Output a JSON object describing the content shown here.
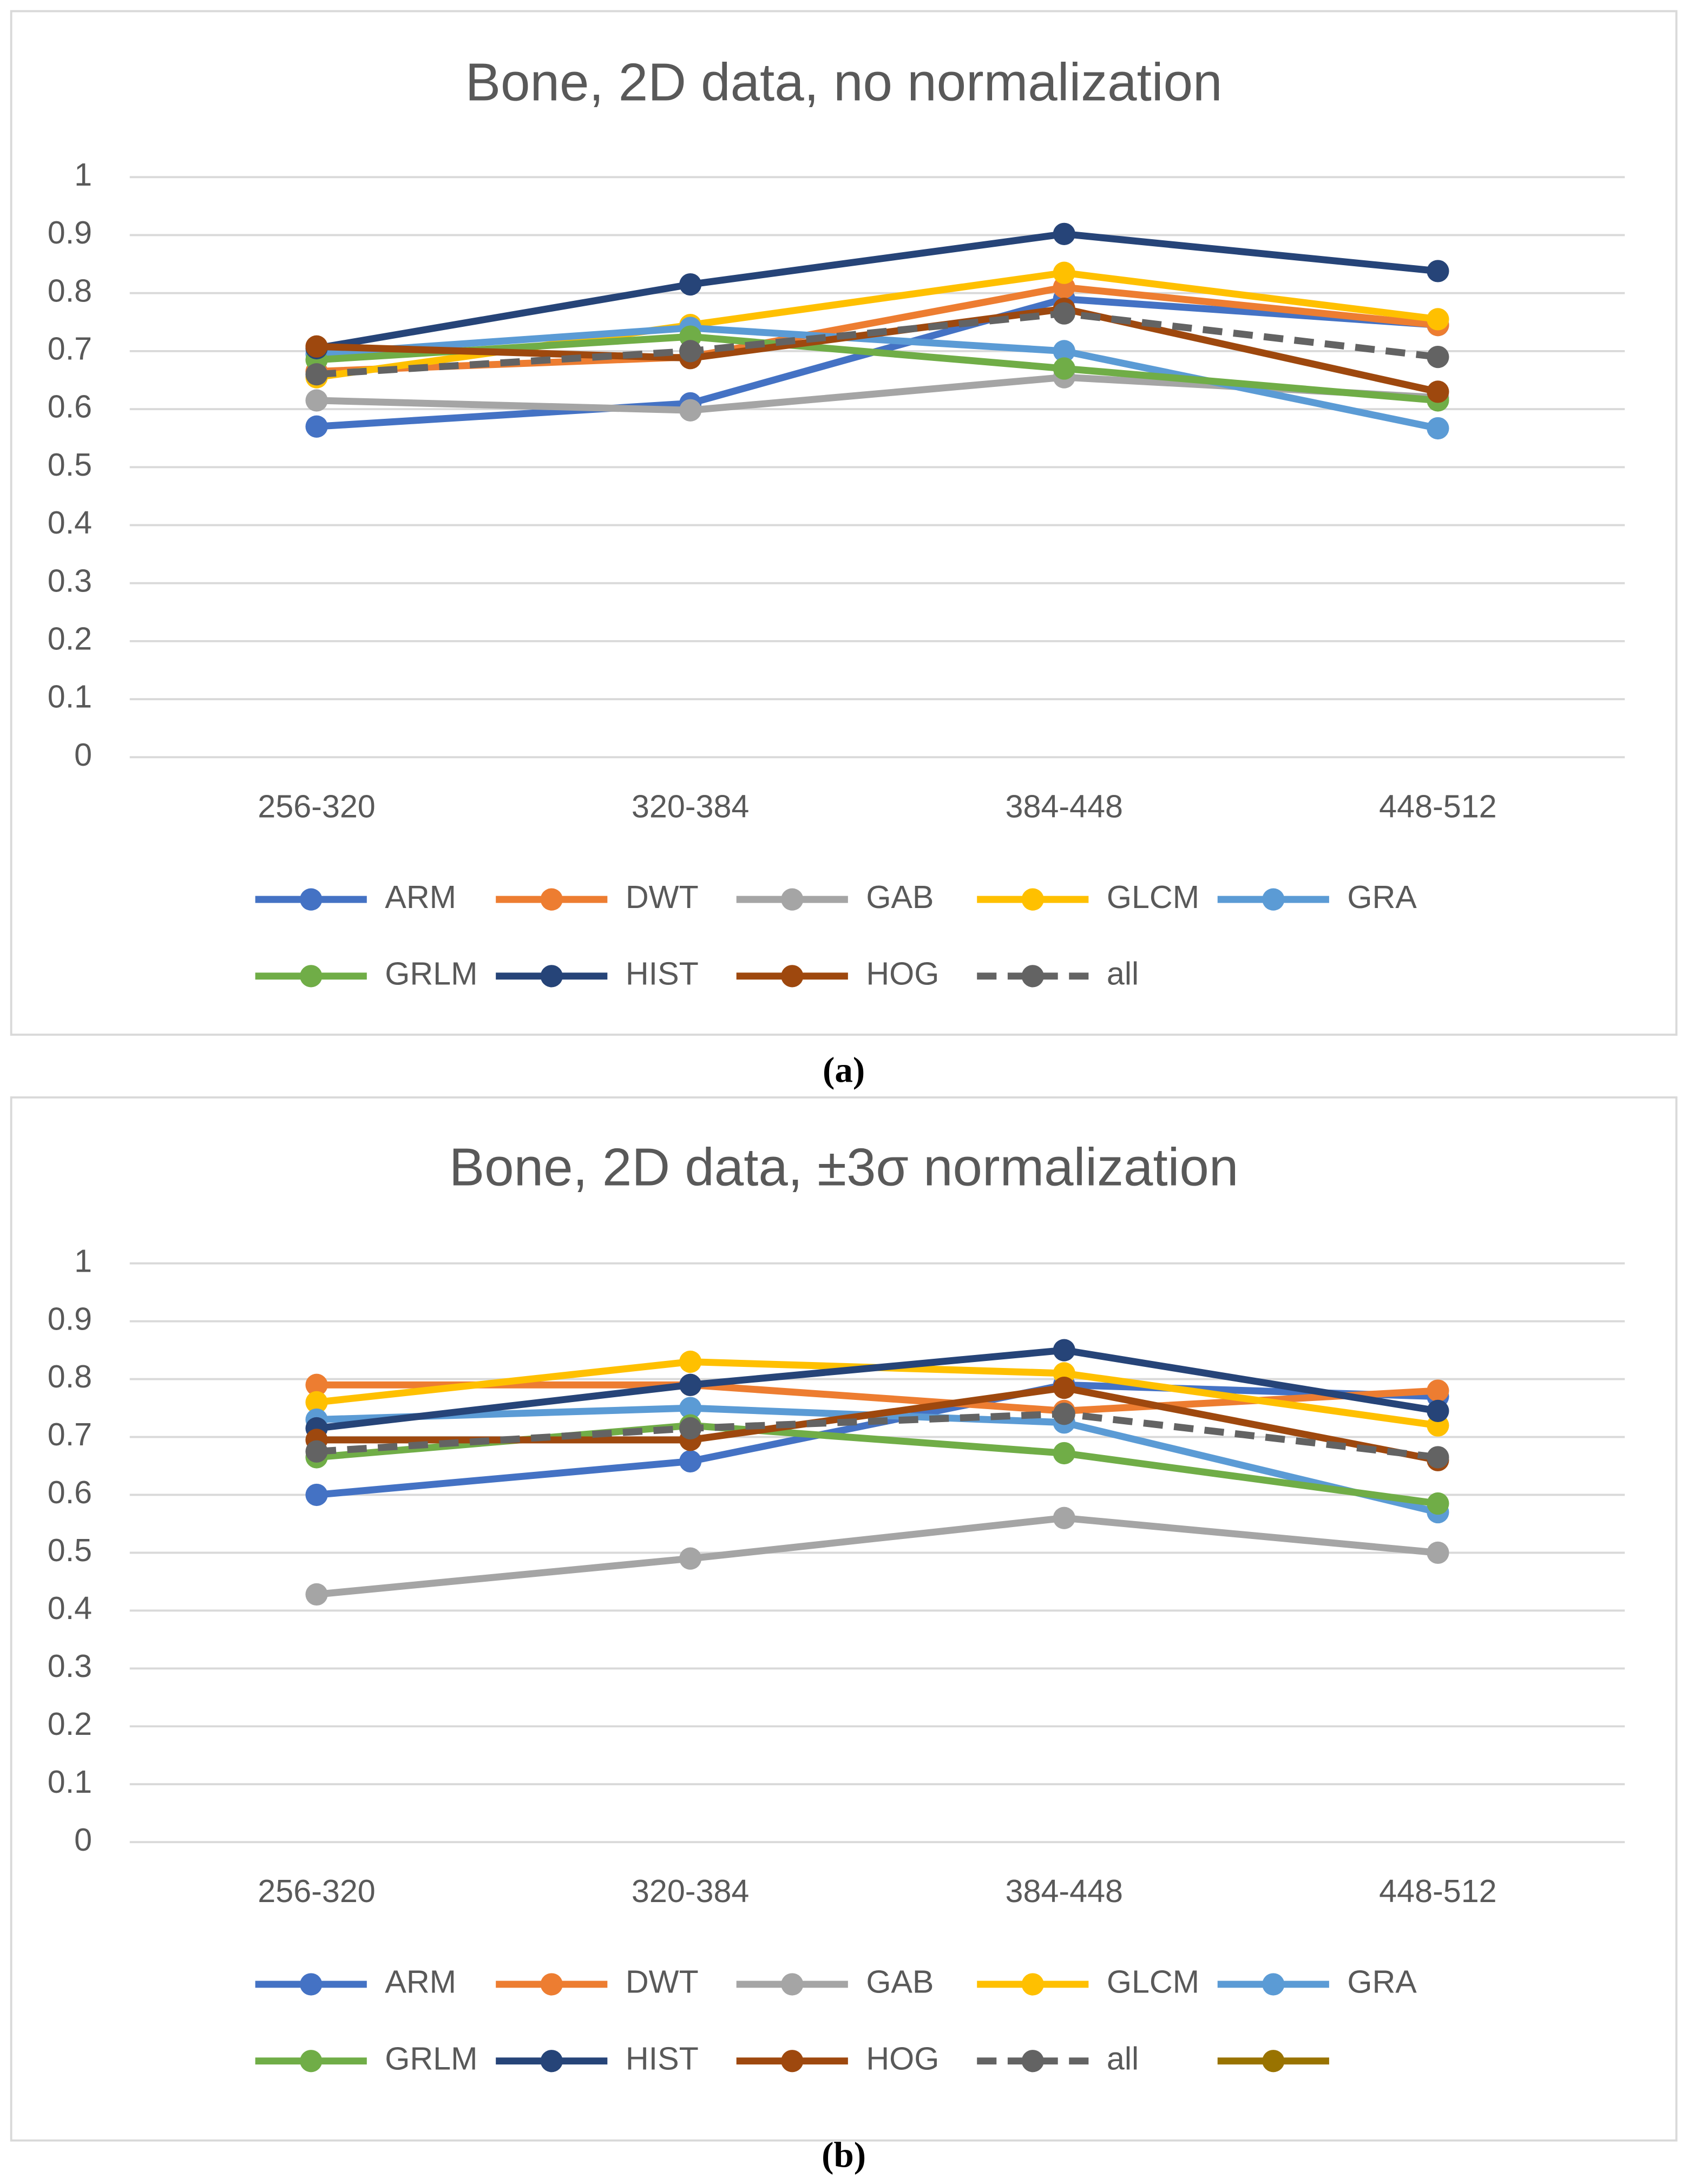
{
  "chart_data": [
    {
      "type": "line",
      "title": "Bone, 2D data, no normalization",
      "caption": "(a)",
      "categories": [
        "256-320",
        "320-384",
        "384-448",
        "448-512"
      ],
      "ylim": [
        0,
        1
      ],
      "yticks": [
        0,
        0.1,
        0.2,
        0.3,
        0.4,
        0.5,
        0.6,
        0.7,
        0.8,
        0.9,
        1
      ],
      "grid": true,
      "legend": "bottom",
      "series": [
        {
          "name": "ARM",
          "color": "#4472c4",
          "values": [
            0.57,
            0.61,
            0.79,
            0.745
          ]
        },
        {
          "name": "DWT",
          "color": "#ed7d31",
          "values": [
            0.665,
            0.69,
            0.81,
            0.745
          ]
        },
        {
          "name": "GAB",
          "color": "#a5a5a5",
          "values": [
            0.615,
            0.598,
            0.655,
            0.62
          ]
        },
        {
          "name": "GLCM",
          "color": "#ffc000",
          "values": [
            0.655,
            0.745,
            0.835,
            0.755
          ]
        },
        {
          "name": "GRA",
          "color": "#5b9bd5",
          "values": [
            0.695,
            0.74,
            0.7,
            0.567
          ]
        },
        {
          "name": "GRLM",
          "color": "#70ad47",
          "values": [
            0.685,
            0.725,
            0.67,
            0.615
          ]
        },
        {
          "name": "HIST",
          "color": "#264478",
          "values": [
            0.705,
            0.815,
            0.902,
            0.838
          ]
        },
        {
          "name": "HOG",
          "color": "#9e480e",
          "values": [
            0.708,
            0.688,
            0.773,
            0.63
          ]
        },
        {
          "name": "all",
          "color": "#636363",
          "dashed": true,
          "values": [
            0.66,
            0.7,
            0.765,
            0.69
          ]
        }
      ]
    },
    {
      "type": "line",
      "title": "Bone, 2D data, ±3σ normalization",
      "caption": "(b)",
      "categories": [
        "256-320",
        "320-384",
        "384-448",
        "448-512"
      ],
      "ylim": [
        0,
        1
      ],
      "yticks": [
        0,
        0.1,
        0.2,
        0.3,
        0.4,
        0.5,
        0.6,
        0.7,
        0.8,
        0.9,
        1
      ],
      "grid": true,
      "legend": "bottom",
      "series": [
        {
          "name": "ARM",
          "color": "#4472c4",
          "values": [
            0.6,
            0.658,
            0.79,
            0.77
          ]
        },
        {
          "name": "DWT",
          "color": "#ed7d31",
          "values": [
            0.79,
            0.79,
            0.745,
            0.78
          ]
        },
        {
          "name": "GAB",
          "color": "#a5a5a5",
          "values": [
            0.428,
            0.49,
            0.56,
            0.5
          ]
        },
        {
          "name": "GLCM",
          "color": "#ffc000",
          "values": [
            0.76,
            0.83,
            0.81,
            0.72
          ]
        },
        {
          "name": "GRA",
          "color": "#5b9bd5",
          "values": [
            0.73,
            0.75,
            0.725,
            0.57
          ]
        },
        {
          "name": "GRLM",
          "color": "#70ad47",
          "values": [
            0.665,
            0.72,
            0.672,
            0.585
          ]
        },
        {
          "name": "HIST",
          "color": "#264478",
          "values": [
            0.715,
            0.79,
            0.85,
            0.745
          ]
        },
        {
          "name": "HOG",
          "color": "#9e480e",
          "values": [
            0.695,
            0.695,
            0.785,
            0.66
          ]
        },
        {
          "name": "all",
          "color": "#636363",
          "dashed": true,
          "values": [
            0.675,
            0.715,
            0.74,
            0.665
          ]
        },
        {
          "name": null,
          "color": "#997300",
          "values": [
            null,
            null,
            null,
            null
          ]
        }
      ]
    }
  ]
}
